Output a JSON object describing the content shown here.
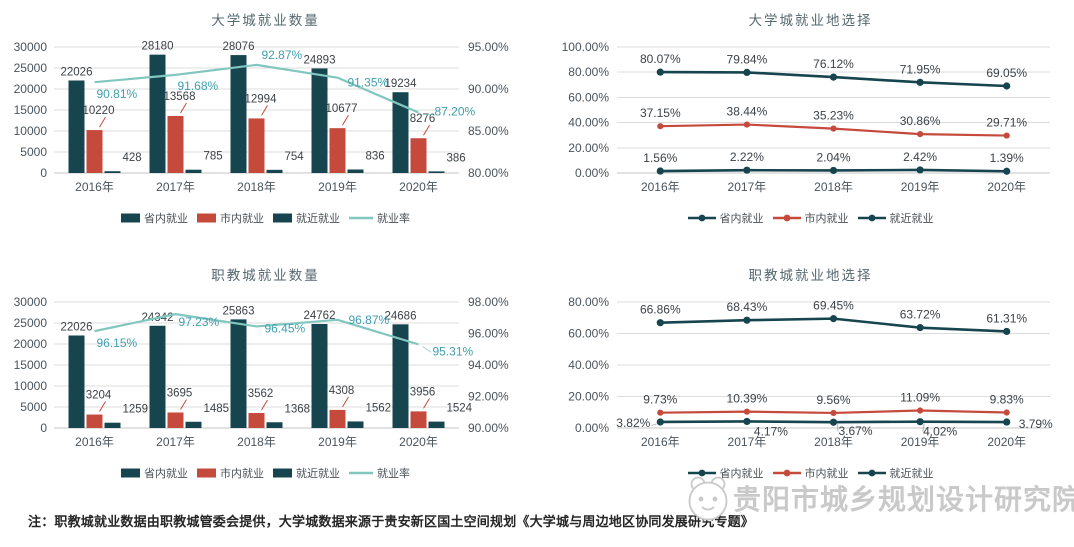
{
  "page": {
    "note": "注：职教城就业数据由职教城管委会提供，大学城数据来源于贵安新区国土空间规划《大学城与周边地区协同发展研究专题》",
    "watermark": "贵阳市城乡规划设计研究院"
  },
  "colors": {
    "dark": "#17454f",
    "red": "#c64a3c",
    "teal": "#82c7bf",
    "teal_label": "#3f9fb0",
    "grid": "#dcdcdc",
    "baseline": "#c4c4c4",
    "axis_text": "#4a545c",
    "label_text": "#3c4247",
    "title_text": "#55686f",
    "note_text": "#262626",
    "watermark": "#c9c9c9"
  },
  "chart_data": [
    {
      "id": "university-employment-count",
      "type": "bar+line",
      "title": "大学城就业数量",
      "categories": [
        "2016年",
        "2017年",
        "2018年",
        "2019年",
        "2020年"
      ],
      "bar_series": [
        {
          "name": "省内就业",
          "color": "dark",
          "values": [
            22026,
            28180,
            28076,
            24893,
            19234
          ]
        },
        {
          "name": "市内就业",
          "color": "red",
          "values": [
            10220,
            13568,
            12994,
            10677,
            8276
          ]
        },
        {
          "name": "就近就业",
          "color": "dark",
          "values": [
            428,
            785,
            754,
            836,
            386
          ]
        }
      ],
      "line_series": {
        "name": "就业率",
        "color": "teal",
        "values": [
          90.81,
          91.68,
          92.87,
          91.35,
          87.2
        ],
        "labels": [
          "90.81%",
          "91.68%",
          "92.87%",
          "91.35%",
          "87.20%"
        ],
        "label_offsets": [
          [
            2,
            16,
            0
          ],
          [
            2,
            15,
            0
          ],
          [
            5,
            -6,
            0
          ],
          [
            10,
            9,
            0
          ],
          [
            16,
            3,
            1
          ]
        ]
      },
      "y_left": {
        "min": 0,
        "max": 30000,
        "ticks": [
          [
            "30000",
            30000
          ],
          [
            "25000",
            25000
          ],
          [
            "20000",
            20000
          ],
          [
            "15000",
            15000
          ],
          [
            "10000",
            10000
          ],
          [
            "5000",
            5000
          ],
          [
            "0",
            0
          ]
        ]
      },
      "y_right": {
        "min": 80,
        "max": 95,
        "ticks": [
          [
            "95.00%",
            95
          ],
          [
            "90.00%",
            90
          ],
          [
            "85.00%",
            85
          ],
          [
            "80.00%",
            80
          ]
        ]
      },
      "legend": [
        {
          "label": "省内就业",
          "marker": "rect",
          "color": "dark"
        },
        {
          "label": "市内就业",
          "marker": "rect",
          "color": "red"
        },
        {
          "label": "就近就业",
          "marker": "rect",
          "color": "dark"
        },
        {
          "label": "就业率",
          "marker": "line",
          "color": "teal"
        }
      ]
    },
    {
      "id": "university-employment-location",
      "type": "line",
      "title": "大学城就业地选择",
      "categories": [
        "2016年",
        "2017年",
        "2018年",
        "2019年",
        "2020年"
      ],
      "series": [
        {
          "name": "省内就业",
          "color": "dark",
          "values": [
            80.07,
            79.84,
            76.12,
            71.95,
            69.05
          ],
          "labels": [
            "80.07%",
            "79.84%",
            "76.12%",
            "71.95%",
            "69.05%"
          ],
          "label_pos": "above"
        },
        {
          "name": "市内就业",
          "color": "red",
          "values": [
            37.15,
            38.44,
            35.23,
            30.86,
            29.71
          ],
          "labels": [
            "37.15%",
            "38.44%",
            "35.23%",
            "30.86%",
            "29.71%"
          ],
          "label_pos": "above"
        },
        {
          "name": "就近就业",
          "color": "dark",
          "values": [
            1.56,
            2.22,
            2.04,
            2.42,
            1.39
          ],
          "labels": [
            "1.56%",
            "2.22%",
            "2.04%",
            "2.42%",
            "1.39%"
          ],
          "label_pos": "above"
        }
      ],
      "y": {
        "min": 0,
        "max": 100,
        "ticks": [
          [
            "100.00%",
            100
          ],
          [
            "80.00%",
            80
          ],
          [
            "60.00%",
            60
          ],
          [
            "40.00%",
            40
          ],
          [
            "20.00%",
            20
          ],
          [
            "0.00%",
            0
          ]
        ]
      },
      "legend": [
        {
          "label": "省内就业",
          "marker": "line-dot",
          "color": "dark"
        },
        {
          "label": "市内就业",
          "marker": "line-dot",
          "color": "red"
        },
        {
          "label": "就近就业",
          "marker": "line-dot",
          "color": "dark"
        }
      ]
    },
    {
      "id": "vocational-employment-count",
      "type": "bar+line",
      "title": "职教城就业数量",
      "categories": [
        "2016年",
        "2017年",
        "2018年",
        "2019年",
        "2020年"
      ],
      "bar_series": [
        {
          "name": "省内就业",
          "color": "dark",
          "values": [
            22026,
            24342,
            25863,
            24762,
            24686
          ]
        },
        {
          "name": "市内就业",
          "color": "red",
          "values": [
            3204,
            3695,
            3562,
            4308,
            3956
          ]
        },
        {
          "name": "就近就业",
          "color": "dark",
          "values": [
            1259,
            1485,
            1368,
            1562,
            1524
          ]
        }
      ],
      "line_series": {
        "name": "就业率",
        "color": "teal",
        "values": [
          96.15,
          97.23,
          96.45,
          96.87,
          95.31
        ],
        "labels": [
          "96.15%",
          "97.23%",
          "96.45%",
          "96.87%",
          "95.31%"
        ],
        "label_offsets": [
          [
            2,
            16,
            0
          ],
          [
            3,
            12,
            0
          ],
          [
            8,
            6,
            0
          ],
          [
            11,
            4,
            0
          ],
          [
            14,
            11,
            1
          ]
        ]
      },
      "y_left": {
        "min": 0,
        "max": 30000,
        "ticks": [
          [
            "30000",
            30000
          ],
          [
            "25000",
            25000
          ],
          [
            "20000",
            20000
          ],
          [
            "15000",
            15000
          ],
          [
            "10000",
            10000
          ],
          [
            "5000",
            5000
          ],
          [
            "0",
            0
          ]
        ]
      },
      "y_right": {
        "min": 90,
        "max": 98,
        "ticks": [
          [
            "98.00%",
            98
          ],
          [
            "96.00%",
            96
          ],
          [
            "94.00%",
            94
          ],
          [
            "92.00%",
            92
          ],
          [
            "90.00%",
            90
          ]
        ]
      },
      "legend": [
        {
          "label": "省内就业",
          "marker": "rect",
          "color": "dark"
        },
        {
          "label": "市内就业",
          "marker": "rect",
          "color": "red"
        },
        {
          "label": "就近就业",
          "marker": "rect",
          "color": "dark"
        },
        {
          "label": "就业率",
          "marker": "line",
          "color": "teal"
        }
      ]
    },
    {
      "id": "vocational-employment-location",
      "type": "line",
      "title": "职教城就业地选择",
      "categories": [
        "2016年",
        "2017年",
        "2018年",
        "2019年",
        "2020年"
      ],
      "series": [
        {
          "name": "省内就业",
          "color": "dark",
          "values": [
            66.86,
            68.43,
            69.45,
            63.72,
            61.31
          ],
          "labels": [
            "66.86%",
            "68.43%",
            "69.45%",
            "63.72%",
            "61.31%"
          ],
          "label_pos": "above"
        },
        {
          "name": "市内就业",
          "color": "red",
          "values": [
            9.73,
            10.39,
            9.56,
            11.09,
            9.83
          ],
          "labels": [
            "9.73%",
            "10.39%",
            "9.56%",
            "11.09%",
            "9.83%"
          ],
          "label_pos": "above"
        },
        {
          "name": "就近就业",
          "color": "dark",
          "values": [
            3.82,
            4.17,
            3.67,
            4.02,
            3.79
          ],
          "labels": [
            "3.82%",
            "4.17%",
            "3.67%",
            "4.02%",
            "3.79%"
          ],
          "label_offsets": [
            [
              -10,
              5,
              1
            ],
            [
              7,
              14,
              0
            ],
            [
              5,
              13,
              1
            ],
            [
              3,
              14,
              1
            ],
            [
              12,
              6,
              0
            ]
          ]
        }
      ],
      "y": {
        "min": 0,
        "max": 80,
        "ticks": [
          [
            "80.00%",
            80
          ],
          [
            "60.00%",
            60
          ],
          [
            "40.00%",
            40
          ],
          [
            "20.00%",
            20
          ],
          [
            "0.00%",
            0
          ]
        ]
      },
      "legend": [
        {
          "label": "省内就业",
          "marker": "line-dot",
          "color": "dark"
        },
        {
          "label": "市内就业",
          "marker": "line-dot",
          "color": "red"
        },
        {
          "label": "就近就业",
          "marker": "line-dot",
          "color": "dark"
        }
      ]
    }
  ]
}
